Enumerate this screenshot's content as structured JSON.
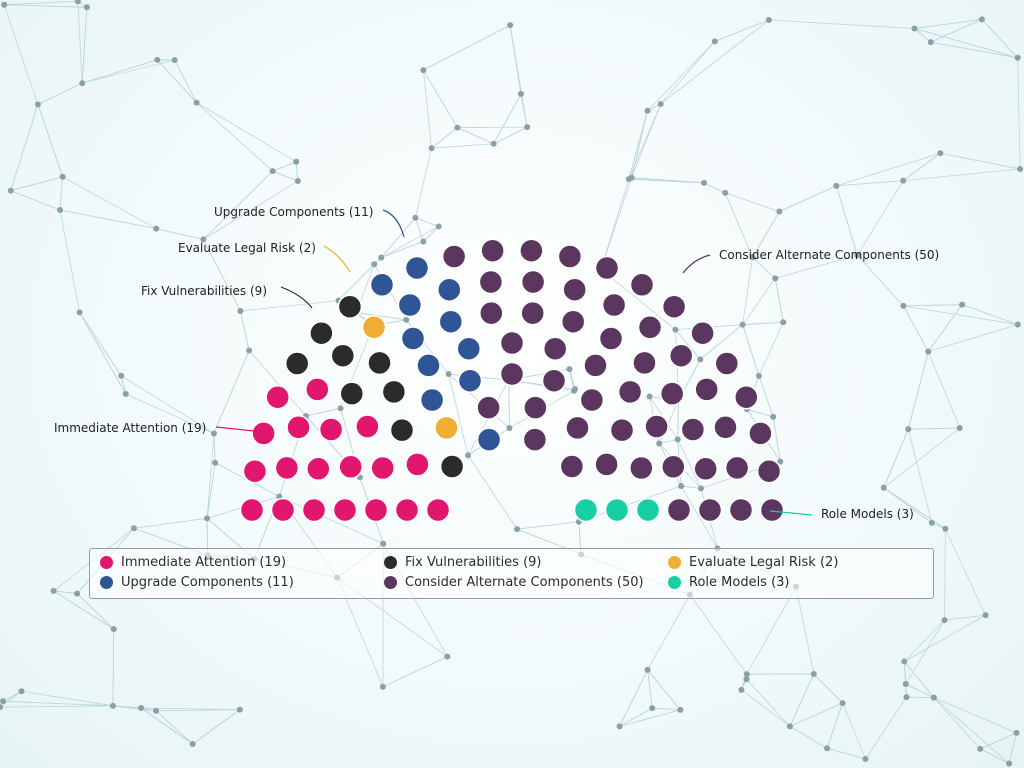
{
  "chart_data": {
    "type": "parliament",
    "series": [
      {
        "name": "Immediate Attention",
        "value": 19,
        "label": "Immediate Attention (19)",
        "color": "#e0166f"
      },
      {
        "name": "Fix Vulnerabilities",
        "value": 9,
        "label": "Fix Vulnerabilities (9)",
        "color": "#2b2b2b"
      },
      {
        "name": "Evaluate Legal Risk",
        "value": 2,
        "label": "Evaluate Legal Risk (2)",
        "color": "#f1ae35"
      },
      {
        "name": "Upgrade Components",
        "value": 11,
        "label": "Upgrade Components (11)",
        "color": "#2f5597"
      },
      {
        "name": "Consider Alternate Components",
        "value": 50,
        "label": "Consider Alternate Components (50)",
        "color": "#5b365f"
      },
      {
        "name": "Role Models",
        "value": 3,
        "label": "Role Models (3)",
        "color": "#17cfa3"
      }
    ],
    "legend_position": "bottom"
  }
}
